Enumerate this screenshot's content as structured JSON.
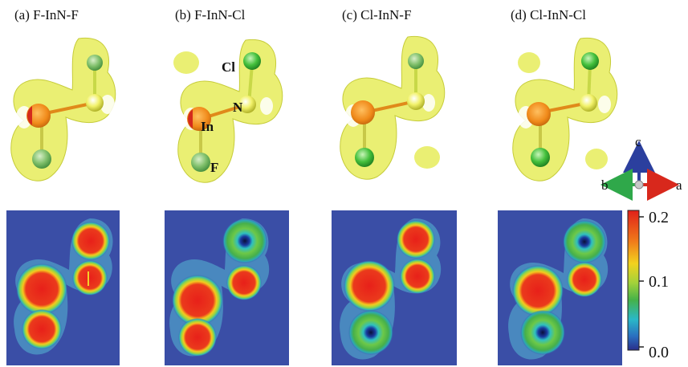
{
  "panels": [
    {
      "title": "(a)  F-InN-F",
      "top_atom": "F",
      "bottom_atom": "F"
    },
    {
      "title": "(b)  F-InN-Cl",
      "top_atom": "Cl",
      "bottom_atom": "F"
    },
    {
      "title": "(c)  Cl-InN-F",
      "top_atom": "F",
      "bottom_atom": "Cl"
    },
    {
      "title": "(d)  Cl-InN-Cl",
      "top_atom": "Cl",
      "bottom_atom": "Cl"
    }
  ],
  "atom_labels": {
    "cl": "Cl",
    "n": "N",
    "in": "In",
    "f": "F"
  },
  "axes_labels": {
    "c": "c",
    "b": "b",
    "a": "a"
  },
  "colorbar": {
    "ticks": [
      "0.2",
      "0.1",
      "0.0"
    ],
    "min": 0.0,
    "max": 0.2
  },
  "colors": {
    "isosurface": "#e6ec5a",
    "map_background": "#3a4ea6",
    "halogen": "#7fbf6a",
    "chlorine": "#44c03c",
    "nitrogen": "#eef04a",
    "indium_red": "#d42a1c",
    "indium_orange": "#f08a1a",
    "axis_c": "#2b3f9e",
    "axis_a": "#d8281c",
    "axis_b": "#2fa84a"
  }
}
